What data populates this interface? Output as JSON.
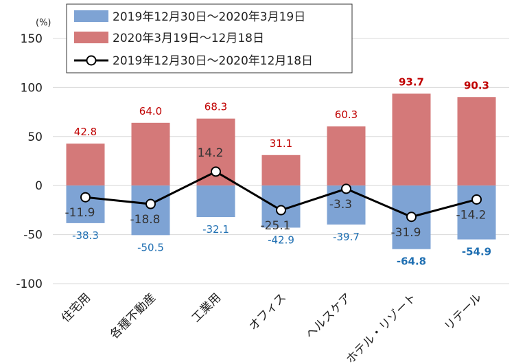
{
  "chart_data": {
    "type": "bar",
    "stacked": true,
    "unit": "(%)",
    "categories": [
      "住宅用",
      "各種不動産",
      "工業用",
      "オフィス",
      "ヘルスケア",
      "ホテル・リゾート",
      "リテール"
    ],
    "series": [
      {
        "name": "2019年12月30日～2020年3月19日",
        "type": "bar",
        "color": "#7ea3d4",
        "label_color": "#1f6fb2",
        "values": [
          -38.3,
          -50.5,
          -32.1,
          -42.9,
          -39.7,
          -64.8,
          -54.9
        ],
        "labels": [
          "-38.3",
          "-50.5",
          "-32.1",
          "-42.9",
          "-39.7",
          "-64.8",
          "-54.9"
        ]
      },
      {
        "name": "2020年3月19日～12月18日",
        "type": "bar",
        "color": "#d47979",
        "label_color": "#c00000",
        "values": [
          42.8,
          64.0,
          68.3,
          31.1,
          60.3,
          93.7,
          90.3
        ],
        "labels": [
          "42.8",
          "64.0",
          "68.3",
          "31.1",
          "60.3",
          "93.7",
          "90.3"
        ]
      },
      {
        "name": "2019年12月30日～2020年12月18日",
        "type": "line",
        "color": "#000000",
        "values": [
          -11.9,
          -18.8,
          14.2,
          -25.1,
          -3.3,
          -31.9,
          -14.2
        ],
        "labels": [
          "-11.9",
          "-18.8",
          "14.2",
          "-25.1",
          "-3.3",
          "-31.9",
          "-14.2"
        ]
      }
    ],
    "bold_label_categories": [
      "ホテル・リゾート",
      "リテール"
    ],
    "ylim": [
      -100,
      150
    ],
    "yticks": [
      -100,
      -50,
      0,
      50,
      100,
      150
    ],
    "ytick_labels": [
      "-100",
      "-50",
      "0",
      "50",
      "100",
      "150"
    ],
    "grid": true,
    "legend_position": "top"
  }
}
